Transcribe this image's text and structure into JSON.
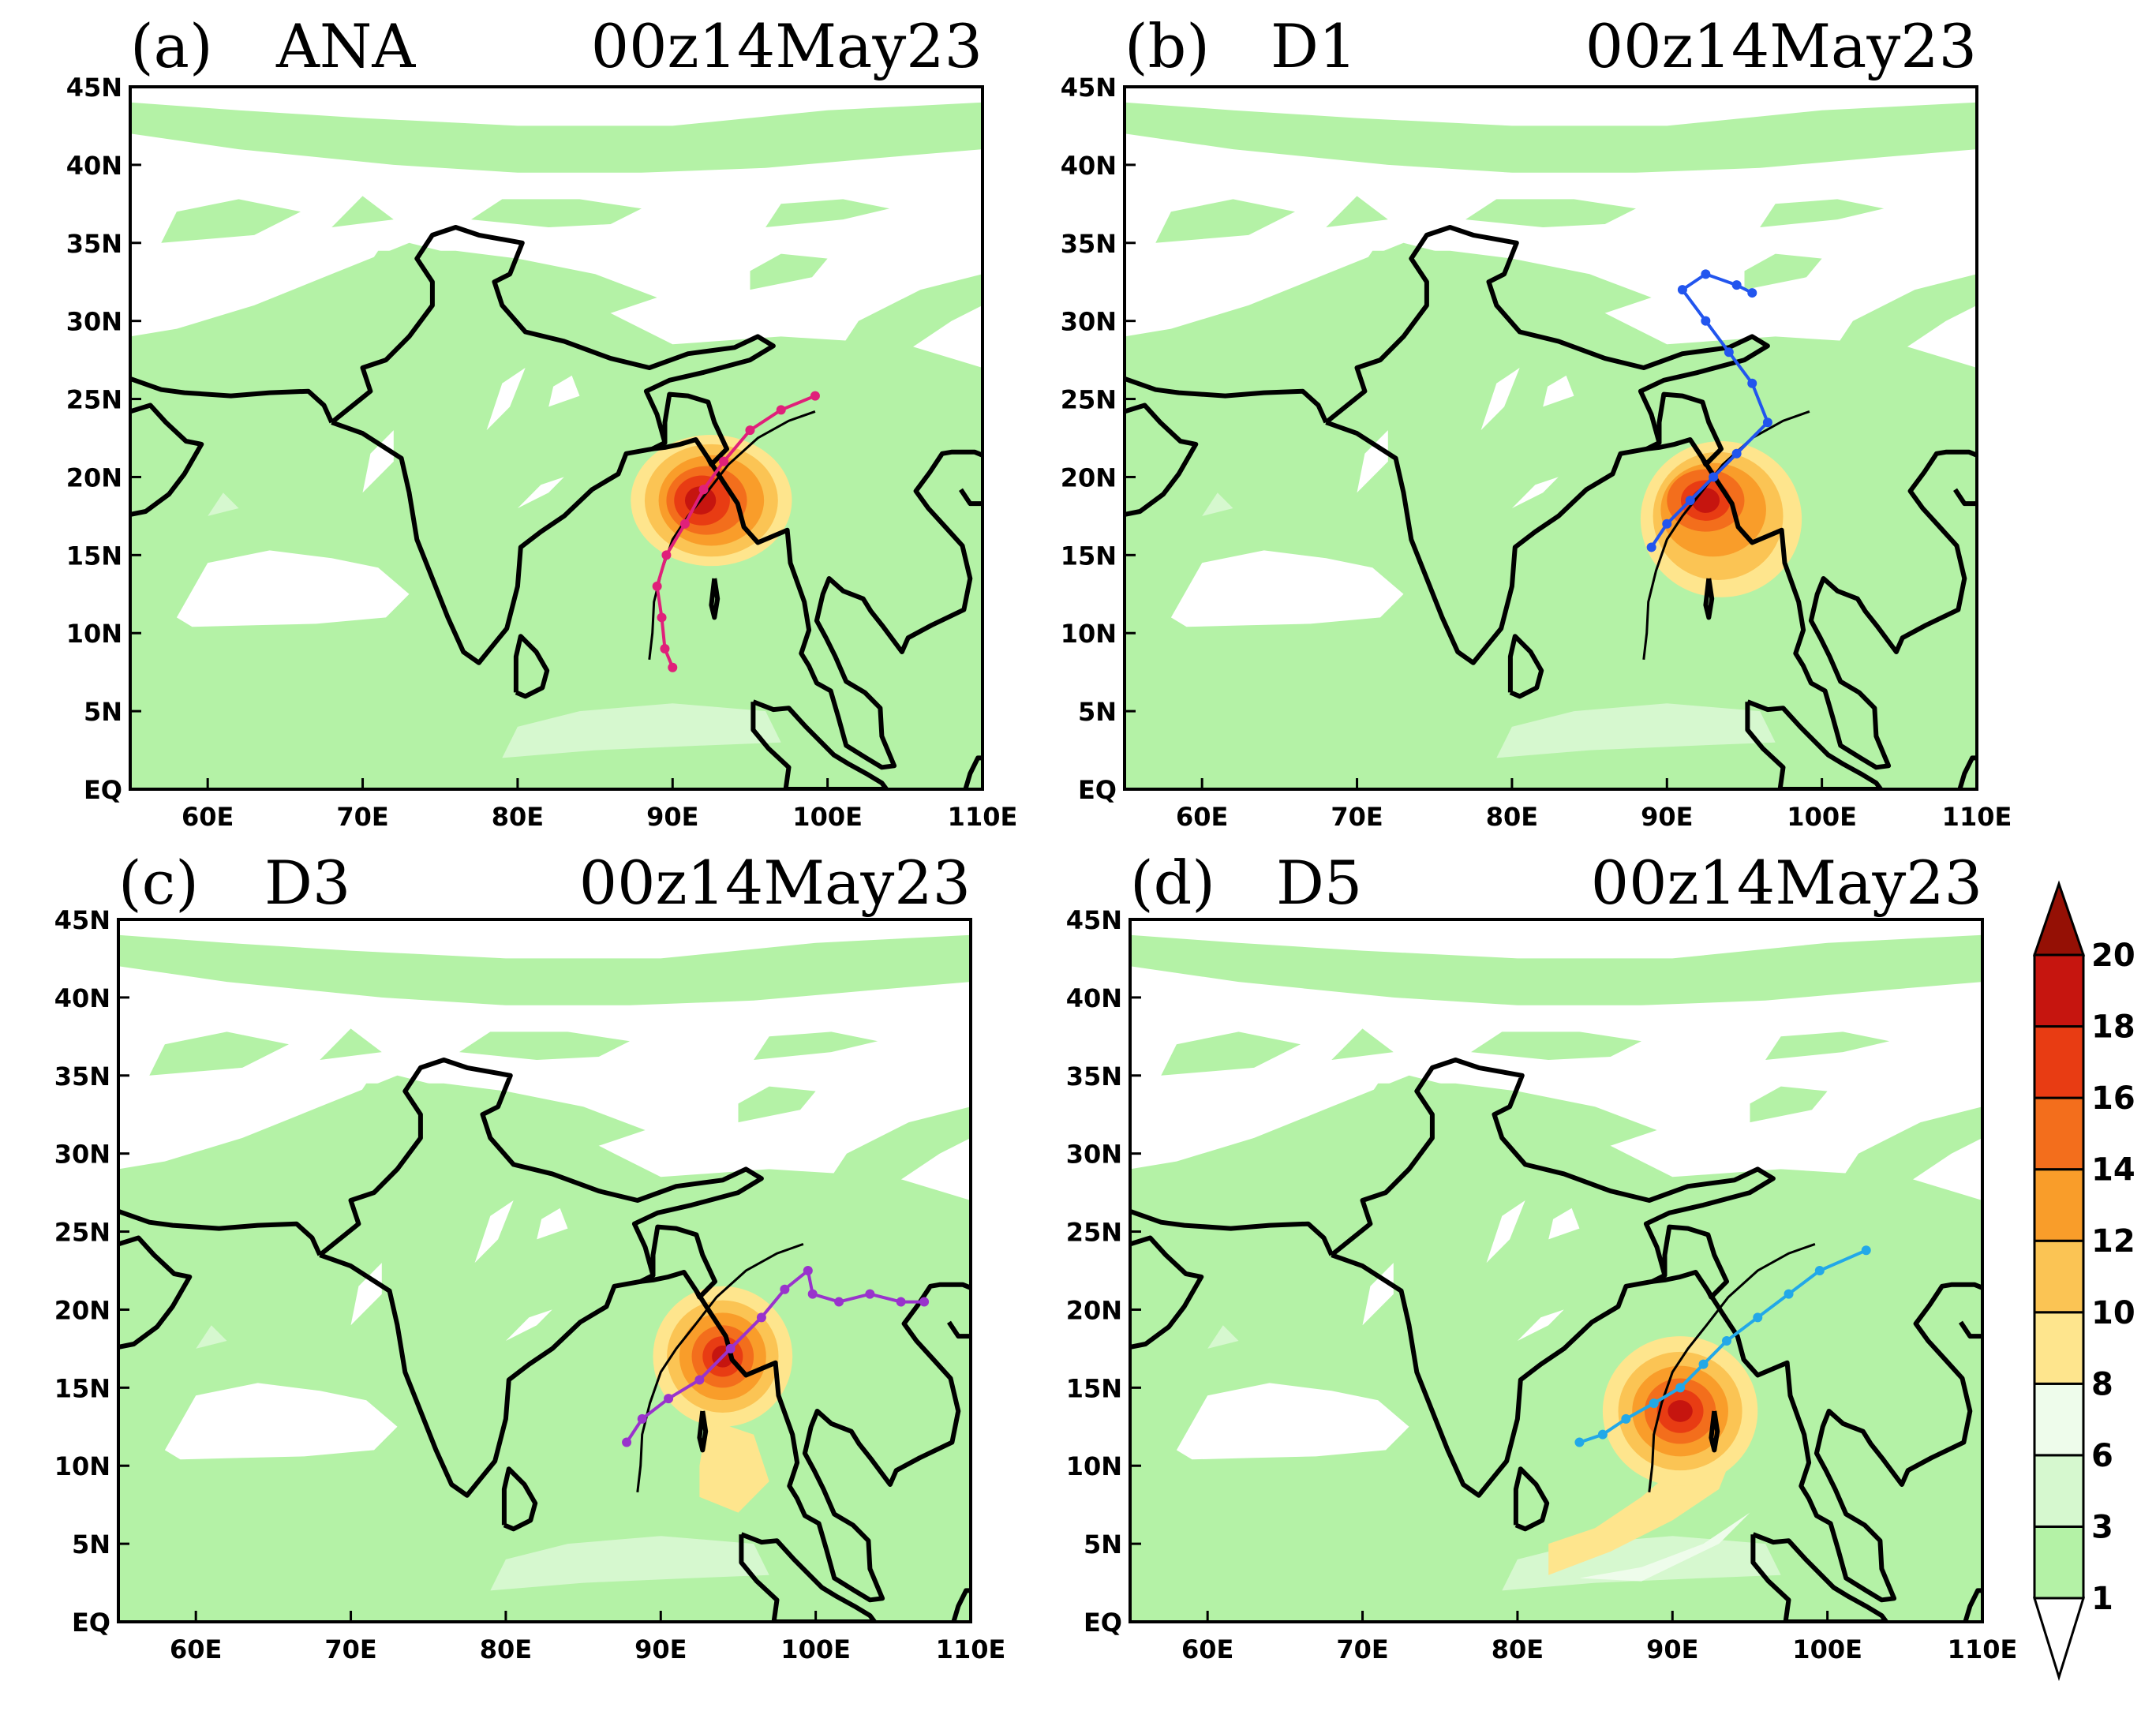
{
  "panels": [
    {
      "label": "(a)",
      "name": "ANA",
      "time": "00z14May23",
      "storm_center": {
        "lon": 92.5,
        "lat": 18.5
      },
      "track": {
        "color": "#e0207a",
        "points": [
          [
            90.0,
            7.8
          ],
          [
            89.5,
            9.0
          ],
          [
            89.3,
            11.0
          ],
          [
            89.0,
            13.0
          ],
          [
            89.6,
            15.0
          ],
          [
            90.8,
            17.0
          ],
          [
            92.0,
            19.2
          ],
          [
            93.3,
            21.0
          ],
          [
            95.0,
            23.0
          ],
          [
            97.0,
            24.3
          ],
          [
            99.2,
            25.2
          ]
        ]
      }
    },
    {
      "label": "(b)",
      "name": "D1",
      "time": "00z14May23",
      "storm_center": {
        "lon": 92.5,
        "lat": 18.5
      },
      "track": {
        "color": "#2255ee",
        "points": [
          [
            89.0,
            15.5
          ],
          [
            90.0,
            17.0
          ],
          [
            91.5,
            18.5
          ],
          [
            93.0,
            20.0
          ],
          [
            94.5,
            21.5
          ],
          [
            96.5,
            23.5
          ],
          [
            95.5,
            26.0
          ],
          [
            94.0,
            28.0
          ],
          [
            92.5,
            30.0
          ],
          [
            91.0,
            32.0
          ],
          [
            92.5,
            33.0
          ],
          [
            94.5,
            32.3
          ],
          [
            95.5,
            31.8
          ]
        ]
      }
    },
    {
      "label": "(c)",
      "name": "D3",
      "time": "00z14May23",
      "storm_center": {
        "lon": 94.0,
        "lat": 17.0
      },
      "track": {
        "color": "#9933cc",
        "points": [
          [
            87.8,
            11.5
          ],
          [
            88.8,
            13.0
          ],
          [
            90.5,
            14.3
          ],
          [
            92.5,
            15.5
          ],
          [
            94.5,
            17.5
          ],
          [
            96.5,
            19.5
          ],
          [
            98.0,
            21.3
          ],
          [
            99.5,
            22.5
          ],
          [
            99.8,
            21.0
          ],
          [
            101.5,
            20.5
          ],
          [
            103.5,
            21.0
          ],
          [
            105.5,
            20.5
          ],
          [
            107.0,
            20.5
          ]
        ]
      }
    },
    {
      "label": "(d)",
      "name": "D5",
      "time": "00z14May23",
      "storm_center": {
        "lon": 90.5,
        "lat": 13.5
      },
      "track": {
        "color": "#22a8e8",
        "points": [
          [
            84.0,
            11.5
          ],
          [
            85.5,
            12.0
          ],
          [
            87.0,
            13.0
          ],
          [
            88.8,
            14.0
          ],
          [
            90.5,
            15.0
          ],
          [
            92.0,
            16.5
          ],
          [
            93.5,
            18.0
          ],
          [
            95.5,
            19.5
          ],
          [
            97.5,
            21.0
          ],
          [
            99.5,
            22.5
          ],
          [
            102.5,
            23.8
          ]
        ]
      }
    }
  ],
  "observed_track": {
    "color": "#000000",
    "points": [
      [
        88.5,
        8.3
      ],
      [
        88.7,
        10.0
      ],
      [
        88.8,
        12.0
      ],
      [
        89.3,
        14.0
      ],
      [
        90.0,
        16.0
      ],
      [
        91.0,
        17.5
      ],
      [
        92.2,
        19.0
      ],
      [
        93.6,
        20.8
      ],
      [
        95.5,
        22.5
      ],
      [
        97.5,
        23.6
      ],
      [
        99.2,
        24.2
      ]
    ]
  },
  "map": {
    "lon_range": [
      55,
      110
    ],
    "lat_range": [
      0,
      45
    ],
    "x_ticks": [
      "60E",
      "70E",
      "80E",
      "90E",
      "100E",
      "110E"
    ],
    "x_tick_values": [
      60,
      70,
      80,
      90,
      100,
      110
    ],
    "y_ticks": [
      "EQ",
      "5N",
      "10N",
      "15N",
      "20N",
      "25N",
      "30N",
      "35N",
      "40N",
      "45N"
    ],
    "y_tick_values": [
      0,
      5,
      10,
      15,
      20,
      25,
      30,
      35,
      40,
      45
    ]
  },
  "colorbar": {
    "levels": [
      "1",
      "3",
      "6",
      "8",
      "10",
      "12",
      "14",
      "16",
      "18",
      "20"
    ],
    "colors": [
      "#ffffff",
      "#b4f2a6",
      "#d6f8cf",
      "#eefceb",
      "#fee58d",
      "#fbc454",
      "#f99d2a",
      "#f36e1c",
      "#e83c13",
      "#c6150f",
      "#951005"
    ]
  }
}
